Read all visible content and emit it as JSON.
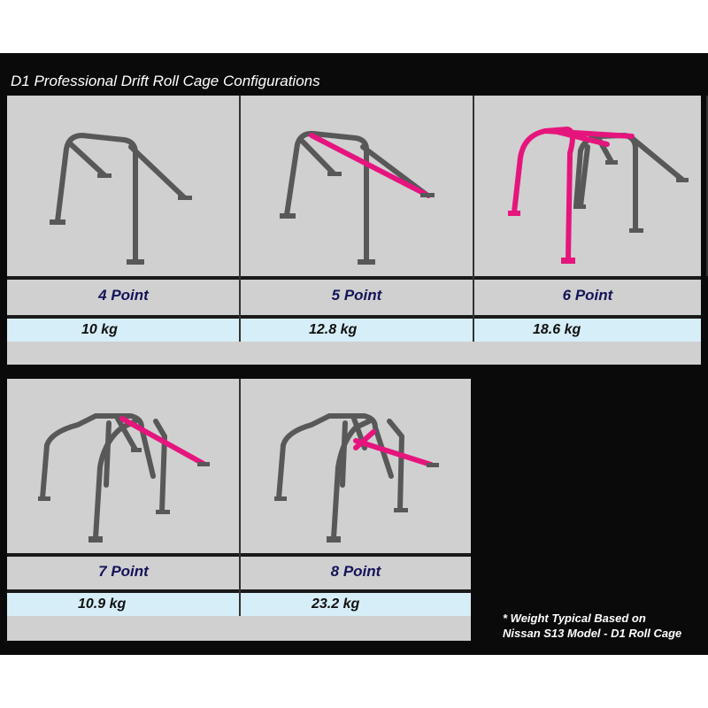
{
  "title": "D1 Professional Drift Roll Cage Configurations",
  "configurations": [
    {
      "label": "4 Point",
      "weight": "10 kg"
    },
    {
      "label": "5 Point",
      "weight": "12.8 kg"
    },
    {
      "label": "6 Point",
      "weight": "18.6 kg"
    },
    {
      "label": "7 Point",
      "weight": "10.9 kg"
    },
    {
      "label": "8 Point",
      "weight": "23.2 kg"
    }
  ],
  "footnote": {
    "line1": "* Weight Typical Based on",
    "line2": "Nissan S13 Model - D1 Roll Cage"
  },
  "colors": {
    "background": "#0a0a0a",
    "panel": "#d0d0d0",
    "weight_row": "#d6eef8",
    "label_text": "#14145a",
    "highlight_tube": "#e5157d",
    "tube": "#585858"
  }
}
